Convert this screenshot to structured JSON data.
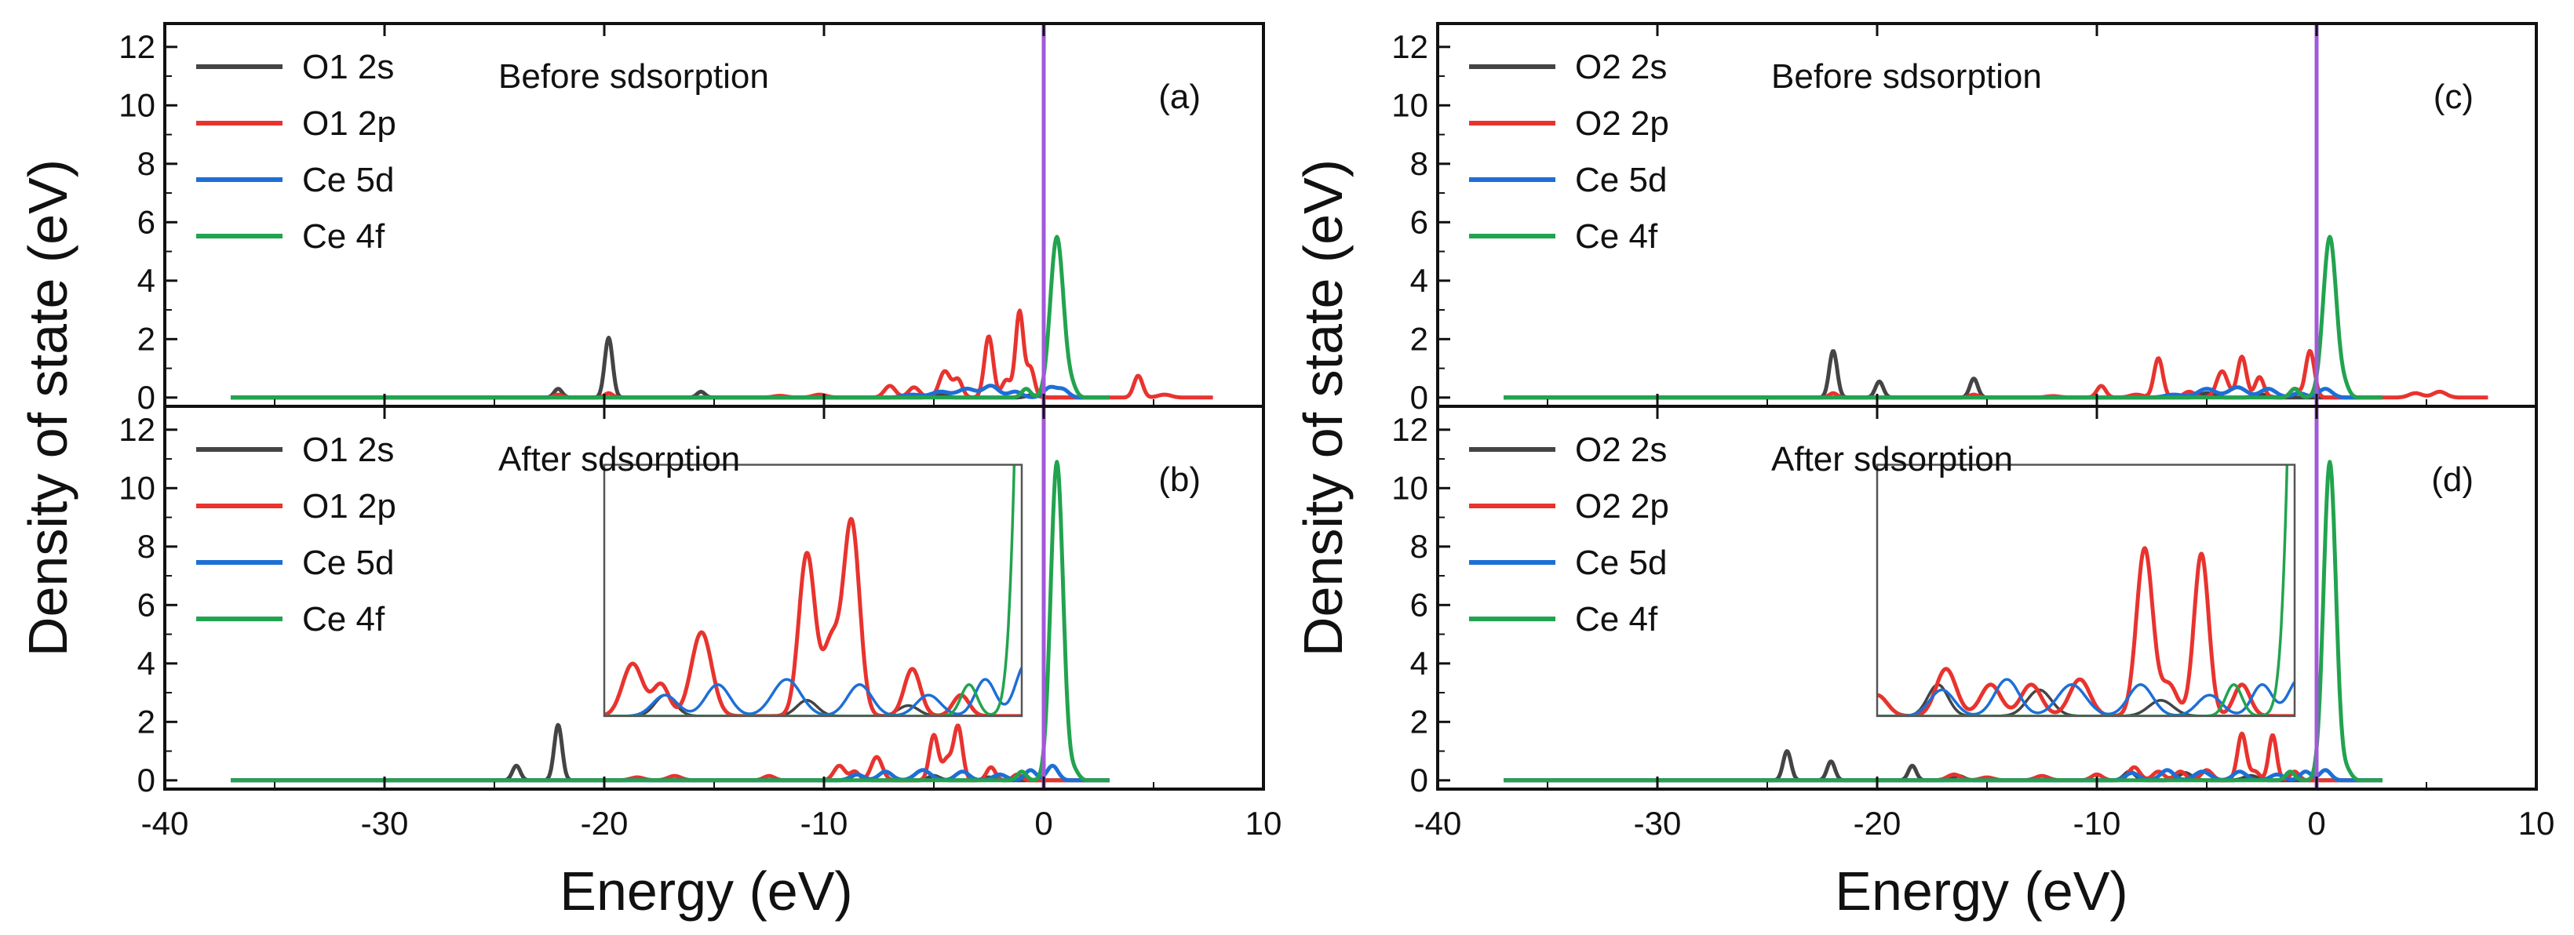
{
  "chart_data": {
    "type": "line",
    "shared": {
      "xlabel": "Energy (eV)",
      "ylabel": "Density of state (eV)",
      "xlim": [
        -40,
        10
      ],
      "ylim": [
        -0.3,
        12.8
      ],
      "xticks": [
        -40,
        -30,
        -20,
        -10,
        0,
        10
      ],
      "yticks": [
        0,
        2,
        4,
        6,
        8,
        10,
        12
      ],
      "fermi_level": 0,
      "fermi_color": "#a259d9"
    },
    "colors": {
      "s": "#444444",
      "p": "#e8332e",
      "d": "#1d6fd6",
      "f": "#22a34f"
    },
    "panels": [
      {
        "id": "a",
        "tag": "(a)",
        "annotation": "Before sdsorption",
        "legend": [
          "O1 2s",
          "O1 2p",
          "Ce 5d",
          "Ce 4f"
        ],
        "series": [
          {
            "name": "O1 2s",
            "peaks": [
              [
                -22.1,
                0.3,
                0.18
              ],
              [
                -19.8,
                2.05,
                0.18
              ],
              [
                -15.6,
                0.2,
                0.18
              ],
              [
                -4.8,
                0.1,
                0.3
              ],
              [
                -0.5,
                0.08,
                0.3
              ]
            ]
          },
          {
            "name": "O1 2p",
            "peaks": [
              [
                -22.1,
                0.1,
                0.18
              ],
              [
                -19.8,
                0.15,
                0.18
              ],
              [
                -12.0,
                0.06,
                0.3
              ],
              [
                -10.2,
                0.1,
                0.3
              ],
              [
                -7.0,
                0.4,
                0.25
              ],
              [
                -5.9,
                0.35,
                0.25
              ],
              [
                -4.5,
                0.9,
                0.25
              ],
              [
                -3.9,
                0.6,
                0.2
              ],
              [
                -2.5,
                2.1,
                0.2
              ],
              [
                -1.7,
                0.6,
                0.2
              ],
              [
                -1.1,
                2.95,
                0.18
              ],
              [
                -0.6,
                1.0,
                0.18
              ],
              [
                4.3,
                0.75,
                0.2
              ],
              [
                5.5,
                0.1,
                0.3
              ]
            ],
            "x_range": [
              -37,
              7.7
            ]
          },
          {
            "name": "Ce 5d",
            "peaks": [
              [
                -6.0,
                0.1,
                0.4
              ],
              [
                -4.7,
                0.2,
                0.4
              ],
              [
                -3.5,
                0.3,
                0.4
              ],
              [
                -2.4,
                0.4,
                0.35
              ],
              [
                -1.3,
                0.2,
                0.3
              ],
              [
                0.3,
                0.35,
                0.3
              ],
              [
                0.9,
                0.25,
                0.25
              ]
            ],
            "x_range": [
              -37,
              3
            ]
          },
          {
            "name": "Ce 4f",
            "peaks": [
              [
                -0.8,
                0.3,
                0.2
              ],
              [
                0.6,
                5.5,
                0.3
              ],
              [
                1.3,
                0.3,
                0.2
              ]
            ],
            "x_range": [
              -37,
              3
            ]
          }
        ]
      },
      {
        "id": "b",
        "tag": "(b)",
        "annotation": "After sdsorption",
        "legend": [
          "O1 2s",
          "O1 2p",
          "Ce 5d",
          "Ce 4f"
        ],
        "series": [
          {
            "name": "O1 2s",
            "peaks": [
              [
                -24.0,
                0.5,
                0.18
              ],
              [
                -22.1,
                1.9,
                0.18
              ],
              [
                -18.5,
                0.1,
                0.2
              ],
              [
                -8.5,
                0.2,
                0.25
              ],
              [
                -5.0,
                0.15,
                0.25
              ],
              [
                -2.5,
                0.1,
                0.25
              ]
            ]
          },
          {
            "name": "O1 2p",
            "peaks": [
              [
                -18.5,
                0.1,
                0.3
              ],
              [
                -16.8,
                0.15,
                0.3
              ],
              [
                -12.5,
                0.15,
                0.25
              ],
              [
                -9.3,
                0.5,
                0.25
              ],
              [
                -8.6,
                0.3,
                0.2
              ],
              [
                -7.6,
                0.8,
                0.25
              ],
              [
                -5.0,
                1.55,
                0.2
              ],
              [
                -4.4,
                0.7,
                0.2
              ],
              [
                -3.9,
                1.85,
                0.2
              ],
              [
                -2.4,
                0.45,
                0.2
              ],
              [
                -1.2,
                0.2,
                0.2
              ]
            ],
            "x_range": [
              -37,
              3
            ]
          },
          {
            "name": "Ce 5d",
            "peaks": [
              [
                -8.5,
                0.2,
                0.3
              ],
              [
                -7.2,
                0.3,
                0.3
              ],
              [
                -5.5,
                0.35,
                0.35
              ],
              [
                -3.7,
                0.3,
                0.3
              ],
              [
                -2.0,
                0.2,
                0.3
              ],
              [
                -0.6,
                0.35,
                0.25
              ],
              [
                0.4,
                0.5,
                0.25
              ]
            ],
            "x_range": [
              -37,
              3
            ]
          },
          {
            "name": "Ce 4f",
            "peaks": [
              [
                -1.0,
                0.3,
                0.2
              ],
              [
                0.6,
                10.9,
                0.28
              ],
              [
                1.4,
                0.3,
                0.2
              ]
            ],
            "x_range": [
              -37,
              3
            ]
          }
        ],
        "inset": {
          "xlim": [
            -10,
            0.3
          ],
          "ylim": [
            0,
            2.4
          ],
          "frame_color": "#555555"
        }
      },
      {
        "id": "c",
        "tag": "(c)",
        "annotation": "Before sdsorption",
        "legend": [
          "O2 2s",
          "O2 2p",
          "Ce 5d",
          "Ce 4f"
        ],
        "series": [
          {
            "name": "O2 2s",
            "peaks": [
              [
                -22.0,
                1.6,
                0.18
              ],
              [
                -19.9,
                0.55,
                0.18
              ],
              [
                -15.6,
                0.65,
                0.18
              ],
              [
                -5.0,
                0.15,
                0.3
              ],
              [
                -2.5,
                0.1,
                0.3
              ]
            ]
          },
          {
            "name": "O2 2p",
            "peaks": [
              [
                -22.0,
                0.15,
                0.18
              ],
              [
                -15.6,
                0.1,
                0.2
              ],
              [
                -12.0,
                0.05,
                0.3
              ],
              [
                -9.8,
                0.4,
                0.2
              ],
              [
                -8.2,
                0.1,
                0.3
              ],
              [
                -7.2,
                1.35,
                0.2
              ],
              [
                -5.8,
                0.2,
                0.25
              ],
              [
                -4.3,
                0.9,
                0.25
              ],
              [
                -3.4,
                1.4,
                0.2
              ],
              [
                -2.6,
                0.7,
                0.2
              ],
              [
                -1.0,
                0.3,
                0.2
              ],
              [
                -0.3,
                1.6,
                0.2
              ],
              [
                4.5,
                0.15,
                0.3
              ],
              [
                5.6,
                0.2,
                0.3
              ]
            ],
            "x_range": [
              -37,
              7.8
            ]
          },
          {
            "name": "Ce 5d",
            "peaks": [
              [
                -6.5,
                0.1,
                0.4
              ],
              [
                -5.0,
                0.3,
                0.4
              ],
              [
                -3.6,
                0.35,
                0.4
              ],
              [
                -2.2,
                0.3,
                0.35
              ],
              [
                -0.8,
                0.15,
                0.3
              ],
              [
                0.4,
                0.3,
                0.3
              ]
            ],
            "x_range": [
              -37,
              3
            ]
          },
          {
            "name": "Ce 4f",
            "peaks": [
              [
                -1.0,
                0.3,
                0.2
              ],
              [
                0.6,
                5.5,
                0.3
              ],
              [
                1.3,
                0.3,
                0.2
              ]
            ],
            "x_range": [
              -37,
              3
            ]
          }
        ]
      },
      {
        "id": "d",
        "tag": "(d)",
        "annotation": "After sdsorption",
        "legend": [
          "O2 2s",
          "O2 2p",
          "Ce 5d",
          "Ce 4f"
        ],
        "series": [
          {
            "name": "O2 2s",
            "peaks": [
              [
                -24.1,
                1.0,
                0.18
              ],
              [
                -22.1,
                0.65,
                0.18
              ],
              [
                -18.4,
                0.5,
                0.18
              ],
              [
                -16.3,
                0.15,
                0.25
              ],
              [
                -8.5,
                0.3,
                0.25
              ],
              [
                -6.0,
                0.25,
                0.3
              ],
              [
                -3.0,
                0.15,
                0.3
              ]
            ]
          },
          {
            "name": "O2 2p",
            "peaks": [
              [
                -16.5,
                0.2,
                0.3
              ],
              [
                -15.0,
                0.1,
                0.3
              ],
              [
                -12.5,
                0.15,
                0.3
              ],
              [
                -10.0,
                0.2,
                0.25
              ],
              [
                -8.3,
                0.45,
                0.25
              ],
              [
                -7.2,
                0.3,
                0.25
              ],
              [
                -6.2,
                0.3,
                0.25
              ],
              [
                -5.0,
                0.35,
                0.25
              ],
              [
                -3.4,
                1.6,
                0.2
              ],
              [
                -2.8,
                0.3,
                0.2
              ],
              [
                -2.0,
                1.55,
                0.18
              ],
              [
                -1.0,
                0.3,
                0.2
              ]
            ],
            "x_range": [
              -37,
              3
            ]
          },
          {
            "name": "Ce 5d",
            "peaks": [
              [
                -8.4,
                0.25,
                0.3
              ],
              [
                -6.8,
                0.35,
                0.3
              ],
              [
                -5.2,
                0.3,
                0.35
              ],
              [
                -3.5,
                0.3,
                0.3
              ],
              [
                -1.8,
                0.2,
                0.3
              ],
              [
                -0.5,
                0.3,
                0.25
              ],
              [
                0.4,
                0.35,
                0.25
              ]
            ],
            "x_range": [
              -37,
              3
            ]
          },
          {
            "name": "Ce 4f",
            "peaks": [
              [
                -1.2,
                0.3,
                0.2
              ],
              [
                0.6,
                10.9,
                0.28
              ],
              [
                1.4,
                0.3,
                0.2
              ]
            ],
            "x_range": [
              -37,
              3
            ]
          }
        ],
        "inset": {
          "xlim": [
            -10,
            0.3
          ],
          "ylim": [
            0,
            2.4
          ],
          "frame_color": "#555555"
        }
      }
    ]
  }
}
